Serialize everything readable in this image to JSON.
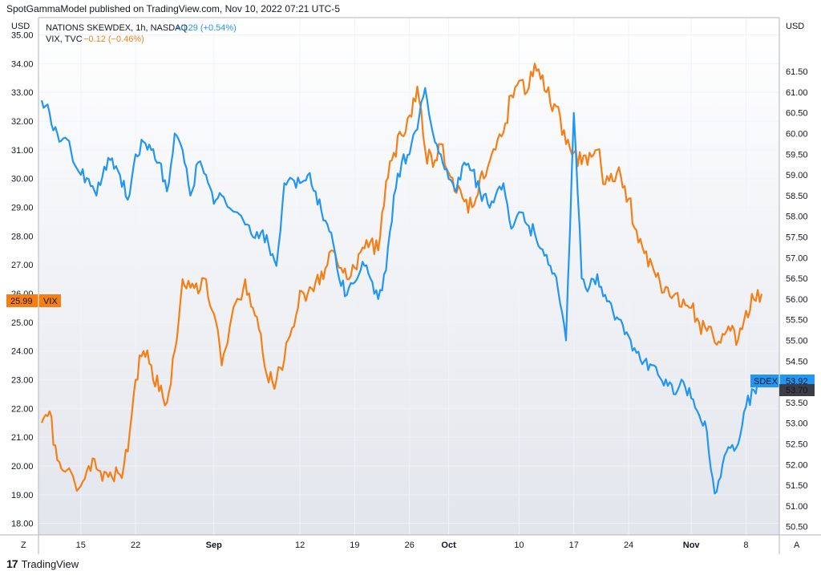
{
  "publisher_line": "SpotGammaModel published on TradingView.com, Nov 10, 2022 07:21 UTC-5",
  "footer_brand": "TradingView",
  "footer_logo": "17",
  "legend": {
    "sdex": {
      "name": "NATIONS SKEWDEX, 1h, NASDAQ",
      "change": "+0.29 (+0.54%)",
      "color": "#2196f3"
    },
    "vix": {
      "name": "VIX, TVC",
      "change": "−0.12 (−0.46%)",
      "color": "#f57f17"
    }
  },
  "axis": {
    "left_unit": "USD",
    "right_unit": "USD",
    "left_ticks": [
      "35.00",
      "34.00",
      "33.00",
      "32.00",
      "31.00",
      "30.00",
      "29.00",
      "28.00",
      "27.00",
      "26.00",
      "25.00",
      "24.00",
      "23.00",
      "22.00",
      "21.00",
      "20.00",
      "19.00",
      "18.00"
    ],
    "right_ticks": [
      "61.50",
      "61.00",
      "60.50",
      "60.00",
      "59.50",
      "59.00",
      "58.50",
      "58.00",
      "57.50",
      "57.00",
      "56.50",
      "56.00",
      "55.50",
      "55.00",
      "54.50",
      "54.00",
      "53.50",
      "53.00",
      "52.50",
      "52.00",
      "51.50",
      "51.00",
      "50.50"
    ],
    "x_ticks": [
      "15",
      "22",
      "Sep",
      "12",
      "19",
      "26",
      "Oct",
      "10",
      "17",
      "24",
      "Nov",
      "8"
    ],
    "corner_left": "Z",
    "corner_right": "A"
  },
  "labels": {
    "vix_last": "25.99",
    "vix_tag": "VIX",
    "sdex_tag": "SDEX",
    "sdex_last": "53.92",
    "sdex_prev": "53.70"
  },
  "chart_data": {
    "type": "line",
    "title": "",
    "xlabel": "",
    "ylabel": "USD",
    "x_range": [
      "Aug 10, 2022",
      "Nov 10, 2022"
    ],
    "left_ylim": [
      17.6,
      35.6
    ],
    "right_ylim": [
      50.3,
      62.8
    ],
    "grid": true,
    "series": [
      {
        "name": "NATIONS SKEWDEX, 1h, NASDAQ",
        "axis": "right",
        "color": "#2196f3",
        "points": [
          [
            "Aug 10",
            60.8
          ],
          [
            "Aug 11",
            60.5
          ],
          [
            "Aug 12",
            60.0
          ],
          [
            "Aug 13",
            59.9
          ],
          [
            "Aug 15",
            59.0
          ],
          [
            "Aug 16",
            58.9
          ],
          [
            "Aug 17",
            58.5
          ],
          [
            "Aug 18",
            59.2
          ],
          [
            "Aug 19",
            59.4
          ],
          [
            "Aug 20",
            59.0
          ],
          [
            "Aug 21",
            58.4
          ],
          [
            "Aug 22",
            59.5
          ],
          [
            "Aug 23",
            59.8
          ],
          [
            "Aug 24",
            59.6
          ],
          [
            "Aug 25",
            59.3
          ],
          [
            "Aug 26",
            58.6
          ],
          [
            "Aug 27",
            60.0
          ],
          [
            "Aug 28",
            59.6
          ],
          [
            "Aug 29",
            58.5
          ],
          [
            "Aug 30",
            59.3
          ],
          [
            "Aug 31",
            59.0
          ],
          [
            "Sep 1",
            58.3
          ],
          [
            "Sep 2",
            58.5
          ],
          [
            "Sep 3",
            58.2
          ],
          [
            "Sep 5",
            57.8
          ],
          [
            "Sep 6",
            57.5
          ],
          [
            "Sep 7",
            57.6
          ],
          [
            "Sep 8",
            57.3
          ],
          [
            "Sep 9",
            56.8
          ],
          [
            "Sep 10",
            58.8
          ],
          [
            "Sep 11",
            58.9
          ],
          [
            "Sep 12",
            58.8
          ],
          [
            "Sep 13",
            59.0
          ],
          [
            "Sep 14",
            58.6
          ],
          [
            "Sep 15",
            57.9
          ],
          [
            "Sep 16",
            57.6
          ],
          [
            "Sep 17",
            56.5
          ],
          [
            "Sep 18",
            56.1
          ],
          [
            "Sep 19",
            56.4
          ],
          [
            "Sep 20",
            56.9
          ],
          [
            "Sep 21",
            56.5
          ],
          [
            "Sep 22",
            56.0
          ],
          [
            "Sep 23",
            56.7
          ],
          [
            "Sep 24",
            58.5
          ],
          [
            "Sep 25",
            59.3
          ],
          [
            "Sep 26",
            59.5
          ],
          [
            "Sep 27",
            60.1
          ],
          [
            "Sep 28",
            61.1
          ],
          [
            "Sep 29",
            60.0
          ],
          [
            "Sep 30",
            59.5
          ],
          [
            "Oct 1",
            58.9
          ],
          [
            "Oct 2",
            58.6
          ],
          [
            "Oct 3",
            59.3
          ],
          [
            "Oct 4",
            59.1
          ],
          [
            "Oct 5",
            58.6
          ],
          [
            "Oct 6",
            58.3
          ],
          [
            "Oct 7",
            58.5
          ],
          [
            "Oct 8",
            58.8
          ],
          [
            "Oct 9",
            57.7
          ],
          [
            "Oct 10",
            58.1
          ],
          [
            "Oct 11",
            57.8
          ],
          [
            "Oct 12",
            57.6
          ],
          [
            "Oct 13",
            57.2
          ],
          [
            "Oct 14",
            56.8
          ],
          [
            "Oct 15",
            56.2
          ],
          [
            "Oct 16",
            55.0
          ],
          [
            "Oct 17",
            60.5
          ],
          [
            "Oct 18",
            56.5
          ],
          [
            "Oct 19",
            56.3
          ],
          [
            "Oct 20",
            56.6
          ],
          [
            "Oct 21",
            56.1
          ],
          [
            "Oct 22",
            55.7
          ],
          [
            "Oct 23",
            55.5
          ],
          [
            "Oct 24",
            55.1
          ],
          [
            "Oct 25",
            54.7
          ],
          [
            "Oct 26",
            54.5
          ],
          [
            "Oct 27",
            54.4
          ],
          [
            "Oct 28",
            54.1
          ],
          [
            "Oct 29",
            53.9
          ],
          [
            "Oct 30",
            53.7
          ],
          [
            "Oct 31",
            54.0
          ],
          [
            "Nov 1",
            53.6
          ],
          [
            "Nov 2",
            53.2
          ],
          [
            "Nov 3",
            52.8
          ],
          [
            "Nov 4",
            51.3
          ],
          [
            "Nov 5",
            52.0
          ],
          [
            "Nov 6",
            52.4
          ],
          [
            "Nov 7",
            52.5
          ],
          [
            "Nov 8",
            53.4
          ],
          [
            "Nov 9",
            53.8
          ],
          [
            "Nov 10",
            53.92
          ]
        ]
      },
      {
        "name": "VIX, TVC",
        "axis": "left",
        "color": "#f57f17",
        "points": [
          [
            "Aug 10",
            21.5
          ],
          [
            "Aug 11",
            21.9
          ],
          [
            "Aug 12",
            20.2
          ],
          [
            "Aug 13",
            19.8
          ],
          [
            "Aug 15",
            19.3
          ],
          [
            "Aug 16",
            20.0
          ],
          [
            "Aug 17",
            19.9
          ],
          [
            "Aug 18",
            19.8
          ],
          [
            "Aug 19",
            19.6
          ],
          [
            "Aug 20",
            19.7
          ],
          [
            "Aug 21",
            20.5
          ],
          [
            "Aug 22",
            23.0
          ],
          [
            "Aug 23",
            24.0
          ],
          [
            "Aug 24",
            23.5
          ],
          [
            "Aug 25",
            22.6
          ],
          [
            "Aug 26",
            22.2
          ],
          [
            "Aug 27",
            24.0
          ],
          [
            "Aug 28",
            26.5
          ],
          [
            "Aug 29",
            26.2
          ],
          [
            "Aug 30",
            26.0
          ],
          [
            "Aug 31",
            26.5
          ],
          [
            "Sep 1",
            25.3
          ],
          [
            "Sep 2",
            23.5
          ],
          [
            "Sep 3",
            24.8
          ],
          [
            "Sep 5",
            26.5
          ],
          [
            "Sep 6",
            25.5
          ],
          [
            "Sep 7",
            24.6
          ],
          [
            "Sep 8",
            22.9
          ],
          [
            "Sep 9",
            23.0
          ],
          [
            "Sep 10",
            23.7
          ],
          [
            "Sep 11",
            24.8
          ],
          [
            "Sep 12",
            26.1
          ],
          [
            "Sep 13",
            26.0
          ],
          [
            "Sep 14",
            26.4
          ],
          [
            "Sep 15",
            26.5
          ],
          [
            "Sep 16",
            27.5
          ],
          [
            "Sep 17",
            26.9
          ],
          [
            "Sep 18",
            26.5
          ],
          [
            "Sep 19",
            26.9
          ],
          [
            "Sep 20",
            27.6
          ],
          [
            "Sep 21",
            27.8
          ],
          [
            "Sep 22",
            27.5
          ],
          [
            "Sep 23",
            29.9
          ],
          [
            "Sep 24",
            30.9
          ],
          [
            "Sep 25",
            31.5
          ],
          [
            "Sep 26",
            32.2
          ],
          [
            "Sep 27",
            33.2
          ],
          [
            "Sep 28",
            31.0
          ],
          [
            "Sep 29",
            30.4
          ],
          [
            "Sep 30",
            31.2
          ],
          [
            "Oct 1",
            30.2
          ],
          [
            "Oct 2",
            29.5
          ],
          [
            "Oct 3",
            29.2
          ],
          [
            "Oct 4",
            29.0
          ],
          [
            "Oct 5",
            30.0
          ],
          [
            "Oct 6",
            30.4
          ],
          [
            "Oct 7",
            31.0
          ],
          [
            "Oct 8",
            31.6
          ],
          [
            "Oct 9",
            32.9
          ],
          [
            "Oct 10",
            33.4
          ],
          [
            "Oct 11",
            33.0
          ],
          [
            "Oct 12",
            34.0
          ],
          [
            "Oct 13",
            33.6
          ],
          [
            "Oct 14",
            32.6
          ],
          [
            "Oct 15",
            32.5
          ],
          [
            "Oct 16",
            31.2
          ],
          [
            "Oct 17",
            30.9
          ],
          [
            "Oct 18",
            30.5
          ],
          [
            "Oct 19",
            30.9
          ],
          [
            "Oct 20",
            31.0
          ],
          [
            "Oct 21",
            29.8
          ],
          [
            "Oct 22",
            29.9
          ],
          [
            "Oct 23",
            30.1
          ],
          [
            "Oct 24",
            29.3
          ],
          [
            "Oct 25",
            28.2
          ],
          [
            "Oct 26",
            27.4
          ],
          [
            "Oct 27",
            27.0
          ],
          [
            "Oct 28",
            26.4
          ],
          [
            "Oct 29",
            26.2
          ],
          [
            "Oct 30",
            26.0
          ],
          [
            "Oct 31",
            25.8
          ],
          [
            "Nov 1",
            25.5
          ],
          [
            "Nov 2",
            25.0
          ],
          [
            "Nov 3",
            24.7
          ],
          [
            "Nov 4",
            24.3
          ],
          [
            "Nov 5",
            24.6
          ],
          [
            "Nov 6",
            24.7
          ],
          [
            "Nov 7",
            24.4
          ],
          [
            "Nov 8",
            25.4
          ],
          [
            "Nov 9",
            25.8
          ],
          [
            "Nov 10",
            25.99
          ]
        ]
      }
    ]
  }
}
